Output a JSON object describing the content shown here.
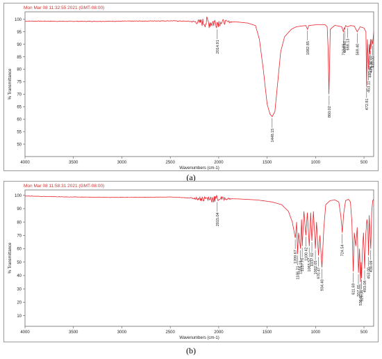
{
  "chart_data": [
    {
      "type": "line",
      "timestamp": "Mon Mar 08 11:32:55 2021 (GMT-08:00)",
      "xlabel": "Wavenumbers (cm-1)",
      "ylabel": "% Transmittance",
      "xlim": [
        4000,
        400
      ],
      "ylim": [
        45,
        103
      ],
      "x_ticks": [
        4000,
        3500,
        3000,
        2500,
        2000,
        1500,
        1000,
        500
      ],
      "y_ticks": [
        50,
        55,
        60,
        65,
        70,
        75,
        80,
        85,
        90,
        95,
        100
      ],
      "caption": "(a)",
      "line_color": "#e8222a",
      "peaks": [
        {
          "label": "2014.91",
          "x": 2014.91,
          "y": 96.5
        },
        {
          "label": "1448.15",
          "x": 1448.15,
          "y": 61
        },
        {
          "label": "1082.85",
          "x": 1082.85,
          "y": 96
        },
        {
          "label": "860.02",
          "x": 860.02,
          "y": 70
        },
        {
          "label": "712.86",
          "x": 712.86,
          "y": 95
        },
        {
          "label": "699.88",
          "x": 699.88,
          "y": 96
        },
        {
          "label": "668.13",
          "x": 668.13,
          "y": 97
        },
        {
          "label": "569.40",
          "x": 569.4,
          "y": 95
        },
        {
          "label": "472.81",
          "x": 472.81,
          "y": 73
        },
        {
          "label": "453.11",
          "x": 453.11,
          "y": 80
        },
        {
          "label": "440.02",
          "x": 440.02,
          "y": 86
        },
        {
          "label": "429.36",
          "x": 429.36,
          "y": 88
        },
        {
          "label": "410.00",
          "x": 410,
          "y": 90
        }
      ],
      "baseline_points": [
        [
          4000,
          99.3
        ],
        [
          3600,
          99.2
        ],
        [
          3200,
          99.2
        ],
        [
          2800,
          99.3
        ],
        [
          2500,
          99.4
        ],
        [
          2300,
          99.2
        ],
        [
          2200,
          98.8
        ],
        [
          1980,
          98.8
        ],
        [
          1900,
          99
        ],
        [
          1800,
          98.9
        ],
        [
          1700,
          98.5
        ],
        [
          1620,
          97.5
        ],
        [
          1580,
          92
        ],
        [
          1540,
          80
        ],
        [
          1500,
          66
        ],
        [
          1470,
          62
        ],
        [
          1448,
          61
        ],
        [
          1420,
          63
        ],
        [
          1390,
          75
        ],
        [
          1360,
          87
        ],
        [
          1320,
          93
        ],
        [
          1250,
          96
        ],
        [
          1200,
          97
        ],
        [
          1150,
          97.3
        ],
        [
          1100,
          97.5
        ],
        [
          1083,
          96
        ],
        [
          1070,
          97.5
        ],
        [
          1000,
          97.8
        ],
        [
          900,
          97.8
        ],
        [
          880,
          97
        ],
        [
          870,
          88
        ],
        [
          862,
          70
        ],
        [
          855,
          82
        ],
        [
          848,
          96
        ],
        [
          800,
          97.6
        ],
        [
          730,
          97
        ],
        [
          713,
          95
        ],
        [
          705,
          96.5
        ],
        [
          700,
          96
        ],
        [
          690,
          97.5
        ],
        [
          668,
          97
        ],
        [
          640,
          97.5
        ],
        [
          600,
          97.3
        ],
        [
          570,
          95
        ],
        [
          540,
          97
        ],
        [
          500,
          96.5
        ],
        [
          480,
          95
        ],
        [
          473,
          73
        ],
        [
          465,
          92
        ],
        [
          453,
          80
        ],
        [
          446,
          90
        ],
        [
          440,
          86
        ],
        [
          433,
          92
        ],
        [
          429,
          88
        ],
        [
          420,
          92
        ],
        [
          410,
          90
        ],
        [
          400,
          95
        ]
      ]
    },
    {
      "type": "line",
      "timestamp": "Mon Mar 08 11:58:31 2021 (GMT-08:00)",
      "xlabel": "Wavenumbers (cm-1)",
      "ylabel": "% Transmittance",
      "xlim": [
        4000,
        400
      ],
      "ylim": [
        2,
        104
      ],
      "x_ticks": [
        4000,
        3500,
        3000,
        2500,
        2000,
        1500,
        1000,
        500
      ],
      "y_ticks": [
        10,
        20,
        30,
        40,
        50,
        60,
        70,
        80,
        90,
        100
      ],
      "caption": "(b)",
      "line_color": "#e8222a",
      "peaks": [
        {
          "label": "2015.04",
          "x": 2015.04,
          "y": 96
        },
        {
          "label": "1209.67",
          "x": 1209.67,
          "y": 68
        },
        {
          "label": "1186.21",
          "x": 1186.21,
          "y": 56
        },
        {
          "label": "1155.18",
          "x": 1155.18,
          "y": 60
        },
        {
          "label": "1137.76",
          "x": 1137.76,
          "y": 62
        },
        {
          "label": "1100.42",
          "x": 1100.42,
          "y": 70
        },
        {
          "label": "1065.57",
          "x": 1065.57,
          "y": 62
        },
        {
          "label": "1037.92",
          "x": 1037.92,
          "y": 66
        },
        {
          "label": "1002.05",
          "x": 1002.05,
          "y": 60
        },
        {
          "label": "970.47",
          "x": 970.47,
          "y": 55
        },
        {
          "label": "934.40",
          "x": 934.4,
          "y": 46
        },
        {
          "label": "724.54",
          "x": 724.54,
          "y": 72
        },
        {
          "label": "611.69",
          "x": 611.69,
          "y": 43
        },
        {
          "label": "557.65",
          "x": 557.65,
          "y": 42
        },
        {
          "label": "536.61",
          "x": 536.61,
          "y": 35
        },
        {
          "label": "526.36",
          "x": 526.36,
          "y": 38
        },
        {
          "label": "493.08",
          "x": 493.08,
          "y": 45
        },
        {
          "label": "453.00",
          "x": 453,
          "y": 55
        },
        {
          "label": "430.09",
          "x": 430.09,
          "y": 60
        }
      ],
      "baseline_points": [
        [
          4000,
          99.5
        ],
        [
          3600,
          98.8
        ],
        [
          3200,
          98.5
        ],
        [
          2800,
          98.5
        ],
        [
          2500,
          98.7
        ],
        [
          2300,
          98
        ],
        [
          2200,
          97.5
        ],
        [
          1980,
          97.5
        ],
        [
          1800,
          97.3
        ],
        [
          1600,
          96.5
        ],
        [
          1450,
          95
        ],
        [
          1350,
          93
        ],
        [
          1280,
          88
        ],
        [
          1240,
          80
        ],
        [
          1209,
          68
        ],
        [
          1195,
          80
        ],
        [
          1186,
          56
        ],
        [
          1175,
          72
        ],
        [
          1155,
          60
        ],
        [
          1145,
          82
        ],
        [
          1137,
          62
        ],
        [
          1120,
          88
        ],
        [
          1100,
          70
        ],
        [
          1085,
          87
        ],
        [
          1065,
          62
        ],
        [
          1050,
          87
        ],
        [
          1038,
          66
        ],
        [
          1022,
          88
        ],
        [
          1002,
          60
        ],
        [
          990,
          80
        ],
        [
          970,
          55
        ],
        [
          955,
          70
        ],
        [
          934,
          46
        ],
        [
          915,
          75
        ],
        [
          895,
          93
        ],
        [
          850,
          96
        ],
        [
          800,
          96.5
        ],
        [
          760,
          95
        ],
        [
          740,
          85
        ],
        [
          724,
          72
        ],
        [
          710,
          86
        ],
        [
          690,
          96
        ],
        [
          660,
          97
        ],
        [
          640,
          95
        ],
        [
          625,
          80
        ],
        [
          611,
          43
        ],
        [
          600,
          72
        ],
        [
          585,
          62
        ],
        [
          570,
          76
        ],
        [
          557,
          42
        ],
        [
          546,
          60
        ],
        [
          536,
          35
        ],
        [
          530,
          50
        ],
        [
          526,
          38
        ],
        [
          515,
          60
        ],
        [
          505,
          72
        ],
        [
          493,
          45
        ],
        [
          482,
          70
        ],
        [
          470,
          82
        ],
        [
          460,
          76
        ],
        [
          453,
          55
        ],
        [
          446,
          85
        ],
        [
          440,
          75
        ],
        [
          430,
          60
        ],
        [
          420,
          88
        ],
        [
          410,
          96
        ],
        [
          400,
          97
        ]
      ]
    }
  ]
}
